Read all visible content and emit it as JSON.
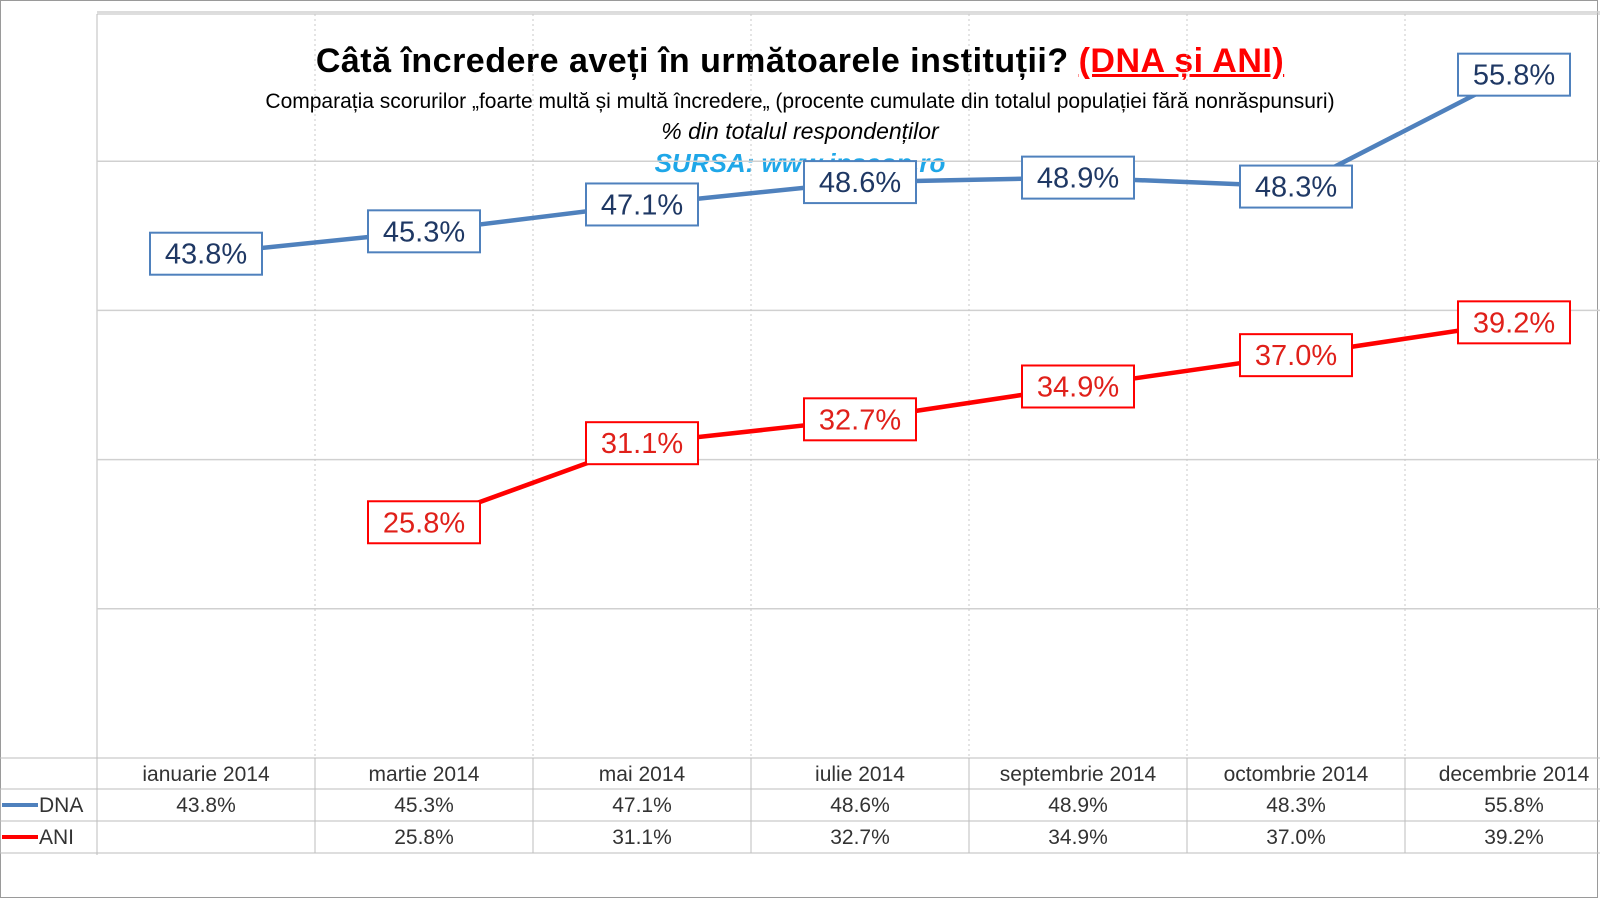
{
  "chart_data": {
    "type": "line",
    "title_main": "Câtă încredere aveți în următoarele instituții?",
    "title_highlight": "(DNA și ANI)",
    "subtitle": "Comparația scorurilor „foarte multă și multă încredere„ (procente cumulate din totalul populației fără nonrăspunsuri)",
    "subtitle2": "% din totalul respondenților",
    "source": "SURSA: www.inscop.ro",
    "categories": [
      "ianuarie 2014",
      "martie 2014",
      "mai 2014",
      "iulie 2014",
      "septembrie 2014",
      "octombrie 2014",
      "decembrie 2014"
    ],
    "ylim": [
      10,
      60
    ],
    "grid": true,
    "legend": "bottom-left data table",
    "series": [
      {
        "name": "DNA",
        "color": "#4f81bd",
        "values": [
          43.8,
          45.3,
          47.1,
          48.6,
          48.9,
          48.3,
          55.8
        ],
        "labels": [
          "43.8%",
          "45.3%",
          "47.1%",
          "48.6%",
          "48.9%",
          "48.3%",
          "55.8%"
        ]
      },
      {
        "name": "ANI",
        "color": "#ff0000",
        "values": [
          null,
          25.8,
          31.1,
          32.7,
          34.9,
          37.0,
          39.2
        ],
        "labels": [
          "",
          "25.8%",
          "31.1%",
          "32.7%",
          "34.9%",
          "37.0%",
          "39.2%"
        ]
      }
    ]
  }
}
